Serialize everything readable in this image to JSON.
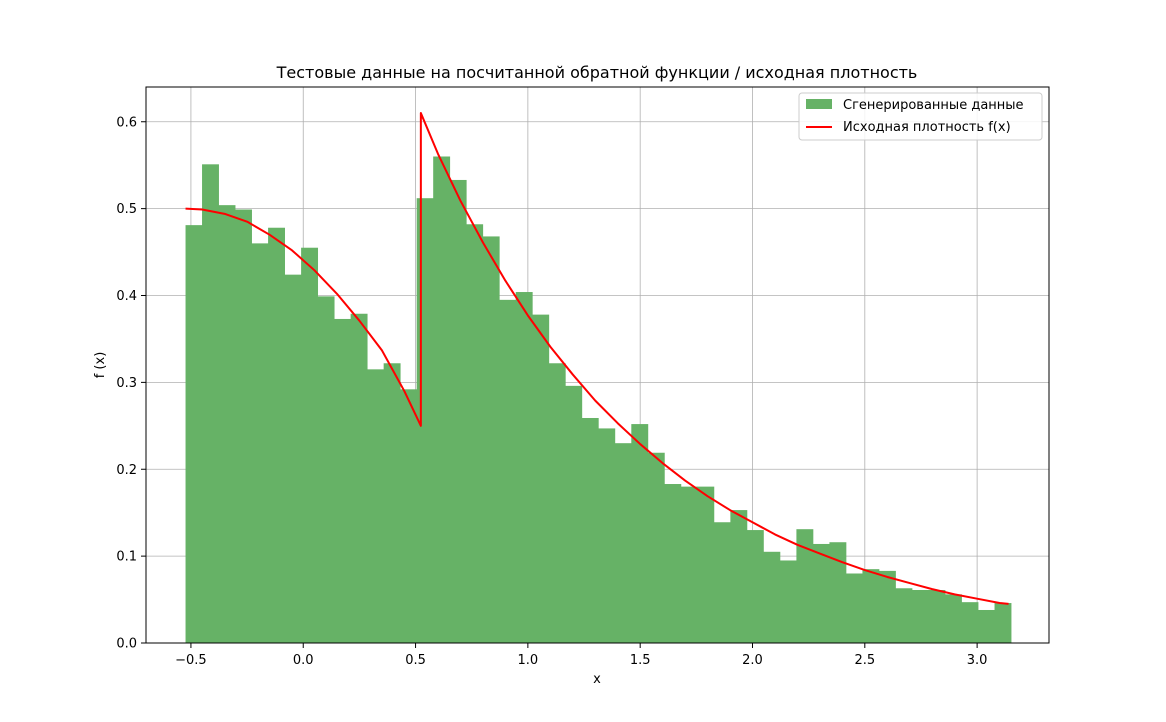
{
  "chart_data": {
    "type": "bar",
    "title": "Тестовые данные на посчитанной обратной функции / исходная плотность",
    "xlabel": "x",
    "ylabel": "f (x)",
    "xlim": [
      -0.7,
      3.32
    ],
    "ylim": [
      0.0,
      0.64
    ],
    "x_ticks": [
      -0.5,
      0.0,
      0.5,
      1.0,
      1.5,
      2.0,
      2.5,
      3.0
    ],
    "x_tick_labels": [
      "−0.5",
      "0.0",
      "0.5",
      "1.0",
      "1.5",
      "2.0",
      "2.5",
      "3.0"
    ],
    "y_ticks": [
      0.0,
      0.1,
      0.2,
      0.3,
      0.4,
      0.5,
      0.6
    ],
    "y_tick_labels": [
      "0.0",
      "0.1",
      "0.2",
      "0.3",
      "0.4",
      "0.5",
      "0.6"
    ],
    "grid": true,
    "legend_position": "top-right",
    "colors": {
      "histogram": "#66b266",
      "density": "#ff0000",
      "grid": "#b0b0b0"
    },
    "histogram": {
      "name": "Сгенерированные данные",
      "bin_start": -0.524,
      "bin_width": 0.0735,
      "values": [
        0.481,
        0.551,
        0.504,
        0.499,
        0.46,
        0.478,
        0.424,
        0.455,
        0.399,
        0.373,
        0.379,
        0.315,
        0.322,
        0.292,
        0.512,
        0.56,
        0.533,
        0.482,
        0.468,
        0.395,
        0.404,
        0.378,
        0.322,
        0.296,
        0.259,
        0.247,
        0.23,
        0.252,
        0.219,
        0.183,
        0.18,
        0.18,
        0.139,
        0.153,
        0.13,
        0.105,
        0.095,
        0.131,
        0.114,
        0.116,
        0.08,
        0.085,
        0.083,
        0.063,
        0.061,
        0.061,
        0.056,
        0.047,
        0.038,
        0.046
      ]
    },
    "density": {
      "name": "Исходная плотность f(x)",
      "x": [
        -0.524,
        -0.45,
        -0.35,
        -0.25,
        -0.15,
        -0.05,
        0.05,
        0.15,
        0.25,
        0.35,
        0.45,
        0.5236,
        0.5236,
        0.6,
        0.7,
        0.8,
        0.9,
        1.0,
        1.1,
        1.2,
        1.3,
        1.4,
        1.5,
        1.6,
        1.7,
        1.8,
        1.9,
        2.0,
        2.1,
        2.2,
        2.3,
        2.4,
        2.5,
        2.6,
        2.7,
        2.8,
        2.9,
        3.0,
        3.1,
        3.14
      ],
      "y": [
        0.5,
        0.499,
        0.494,
        0.485,
        0.47,
        0.452,
        0.429,
        0.402,
        0.371,
        0.337,
        0.29,
        0.25,
        0.61,
        0.563,
        0.509,
        0.461,
        0.417,
        0.377,
        0.341,
        0.309,
        0.279,
        0.253,
        0.229,
        0.207,
        0.187,
        0.169,
        0.153,
        0.139,
        0.125,
        0.113,
        0.103,
        0.093,
        0.084,
        0.076,
        0.069,
        0.062,
        0.056,
        0.051,
        0.046,
        0.045
      ]
    }
  }
}
